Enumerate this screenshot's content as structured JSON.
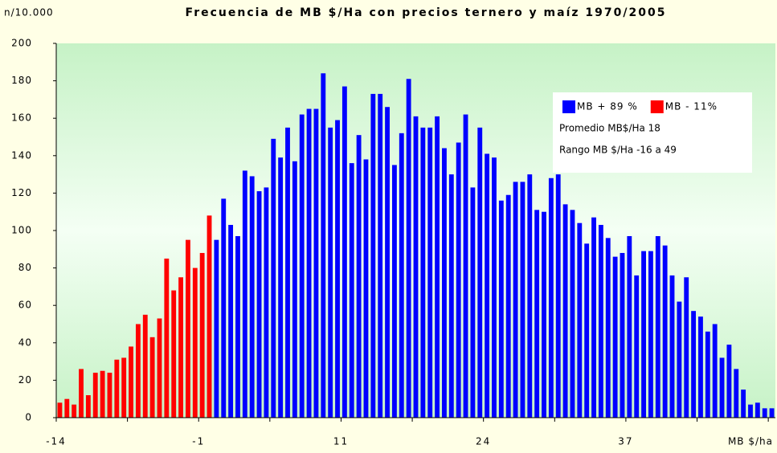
{
  "chart_data": {
    "type": "bar",
    "title": "Frecuencia de MB $/Ha con precios ternero y maíz 1970/2005",
    "y_label": "n/10.000",
    "x_label": "MB $/ha",
    "annotations": [
      "Promedio MB$/Ha 18",
      "Rango MB $/Ha -16 a 49"
    ],
    "categories": [
      "-14",
      null,
      null,
      null,
      null,
      null,
      null,
      null,
      null,
      null,
      null,
      null,
      null,
      null,
      null,
      null,
      null,
      null,
      null,
      null,
      "-1",
      null,
      null,
      null,
      null,
      null,
      null,
      null,
      null,
      null,
      null,
      null,
      null,
      null,
      null,
      null,
      null,
      null,
      null,
      null,
      "11",
      null,
      null,
      null,
      null,
      null,
      null,
      null,
      null,
      null,
      null,
      null,
      null,
      null,
      null,
      null,
      null,
      null,
      null,
      null,
      "24",
      null,
      null,
      null,
      null,
      null,
      null,
      null,
      null,
      null,
      null,
      null,
      null,
      null,
      null,
      null,
      null,
      null,
      null,
      null,
      "37",
      null,
      null,
      null,
      null,
      null,
      null,
      null,
      null,
      null,
      null,
      null,
      null,
      null,
      null,
      null,
      null,
      null,
      null,
      null,
      null
    ],
    "series": [
      {
        "name": "MB + 89 %",
        "color": "#0000ff",
        "values": [
          null,
          null,
          null,
          null,
          null,
          null,
          null,
          null,
          null,
          null,
          null,
          null,
          null,
          null,
          null,
          null,
          null,
          null,
          null,
          null,
          null,
          null,
          95,
          117,
          103,
          97,
          132,
          129,
          121,
          123,
          149,
          139,
          155,
          137,
          162,
          165,
          165,
          184,
          155,
          159,
          177,
          136,
          151,
          138,
          173,
          173,
          166,
          135,
          152,
          181,
          161,
          155,
          155,
          161,
          144,
          130,
          147,
          162,
          123,
          155,
          141,
          139,
          116,
          119,
          126,
          126,
          130,
          111,
          110,
          128,
          130,
          114,
          111,
          104,
          93,
          107,
          103,
          96,
          86,
          88,
          97,
          76,
          89,
          89,
          97,
          92,
          76,
          62,
          75,
          57,
          54,
          46,
          50,
          32,
          39,
          26,
          15,
          7,
          8,
          5,
          5
        ]
      },
      {
        "name": "MB - 11%",
        "color": "#ff0000",
        "values": [
          8,
          10,
          7,
          26,
          12,
          24,
          25,
          24,
          31,
          32,
          38,
          50,
          55,
          43,
          53,
          85,
          68,
          75,
          95,
          80,
          88,
          108,
          null,
          null,
          null,
          null,
          null,
          null,
          null,
          null,
          null,
          null,
          null,
          null,
          null,
          null,
          null,
          null,
          null,
          null,
          null,
          null,
          null,
          null,
          null,
          null,
          null,
          null,
          null,
          null,
          null,
          null,
          null,
          null,
          null,
          null,
          null,
          null,
          null,
          null,
          null,
          null,
          null,
          null,
          null,
          null,
          null,
          null,
          null,
          null,
          null,
          null,
          null,
          null,
          null,
          null,
          null,
          null,
          null,
          null,
          null,
          null,
          null,
          null,
          null,
          null,
          null,
          null,
          null,
          null,
          null,
          null,
          null,
          null,
          null,
          null,
          null,
          null,
          null,
          null,
          null
        ]
      }
    ],
    "ylim": [
      0,
      200
    ],
    "yticks": [
      0,
      20,
      40,
      60,
      80,
      100,
      120,
      140,
      160,
      180,
      200
    ],
    "grid": false
  }
}
